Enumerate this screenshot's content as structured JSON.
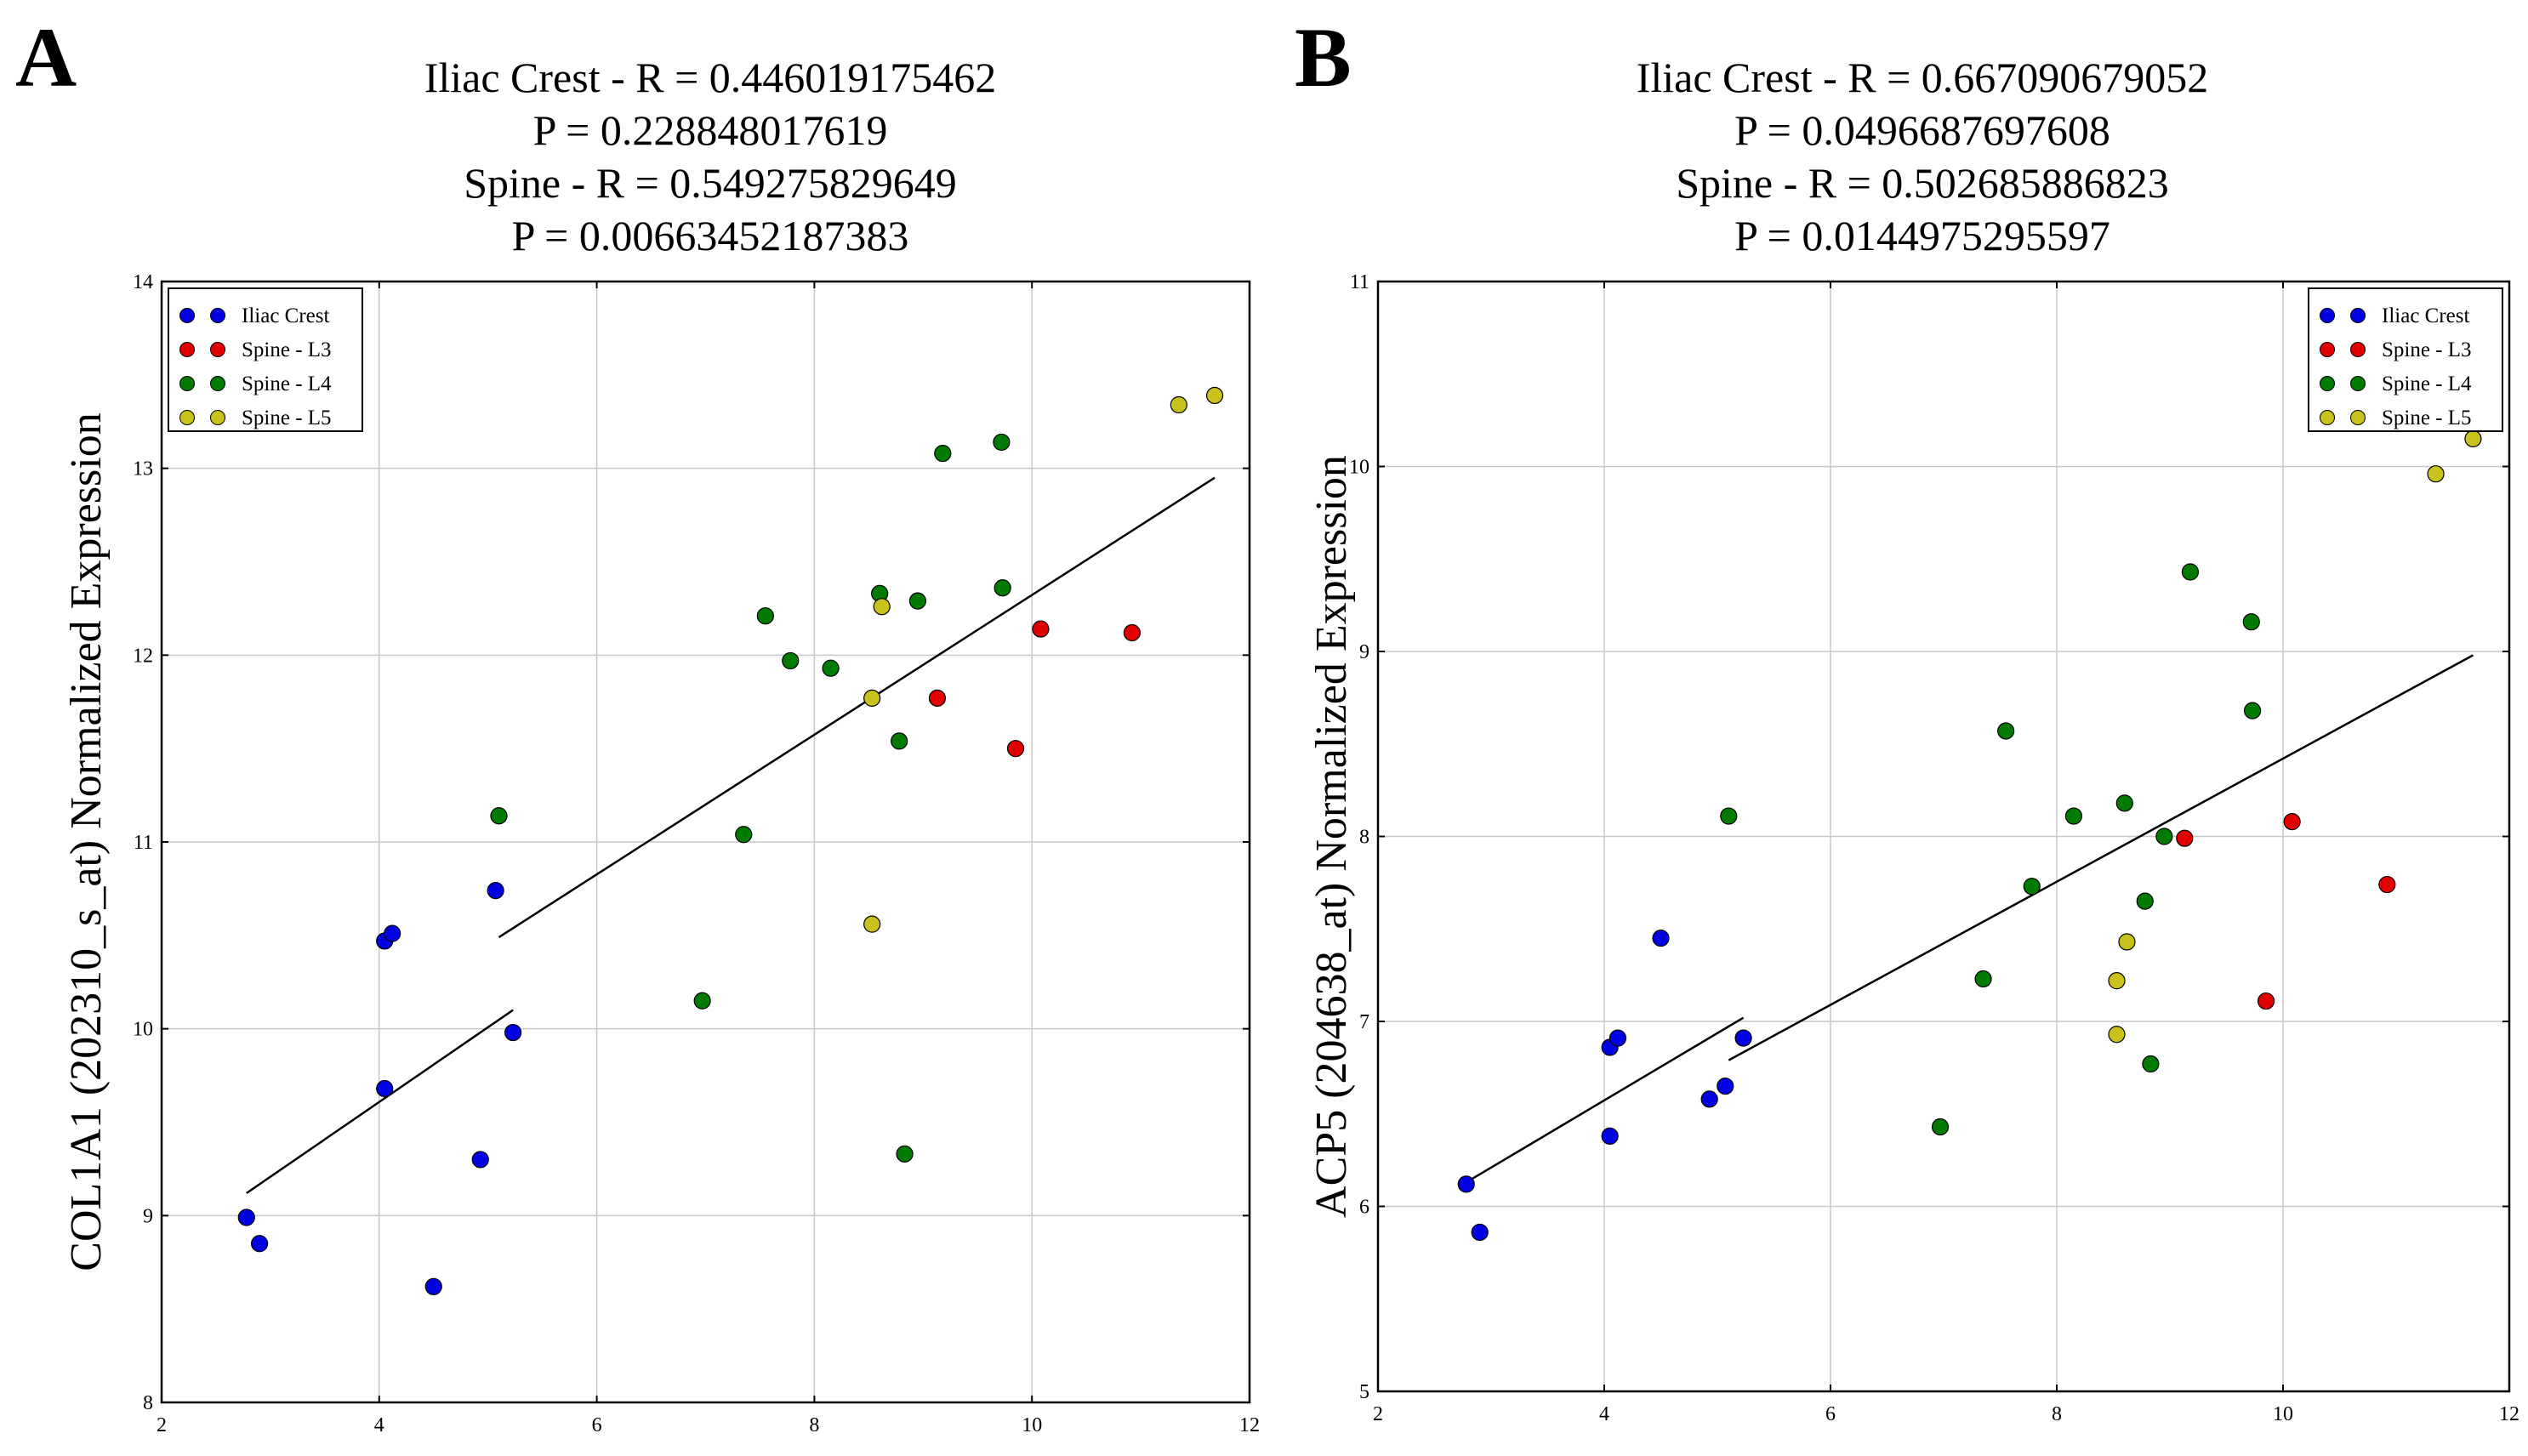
{
  "panels": [
    {
      "letter": "A",
      "title_lines": [
        "Iliac Crest - R = 0.446019175462",
        "P = 0.228848017619",
        "Spine - R = 0.549275829649",
        "P = 0.00663452187383"
      ]
    },
    {
      "letter": "B",
      "title_lines": [
        "Iliac Crest - R = 0.667090679052",
        "P = 0.0496687697608",
        "Spine - R = 0.502685886823",
        "P = 0.0144975295597"
      ]
    }
  ],
  "chart_data": [
    {
      "type": "scatter",
      "title": "Iliac Crest - R = 0.446019175462\nP = 0.228848017619\nSpine - R = 0.549275829649\nP = 0.00663452187383",
      "xlabel": "",
      "ylabel": "COL1A1 (202310_s_at) Normalized Expression",
      "xlim": [
        2,
        12
      ],
      "ylim": [
        8,
        14
      ],
      "xticks": [
        2,
        4,
        6,
        8,
        10,
        12
      ],
      "yticks": [
        8,
        9,
        10,
        11,
        12,
        13,
        14
      ],
      "grid": true,
      "legend_position": "top-left",
      "series": [
        {
          "name": "Iliac Crest",
          "color": "#0000e0",
          "points": [
            [
              2.78,
              8.99
            ],
            [
              2.9,
              8.85
            ],
            [
              4.05,
              9.68
            ],
            [
              4.05,
              10.47
            ],
            [
              4.12,
              10.51
            ],
            [
              4.5,
              8.62
            ],
            [
              4.93,
              9.3
            ],
            [
              5.07,
              10.74
            ],
            [
              5.23,
              9.98
            ]
          ]
        },
        {
          "name": "Spine - L3",
          "color": "#e00000",
          "points": [
            [
              9.13,
              11.77
            ],
            [
              9.85,
              11.5
            ],
            [
              10.08,
              12.14
            ],
            [
              10.92,
              12.12
            ]
          ]
        },
        {
          "name": "Spine - L4",
          "color": "#007a00",
          "points": [
            [
              5.1,
              11.14
            ],
            [
              6.97,
              10.15
            ],
            [
              7.35,
              11.04
            ],
            [
              7.55,
              12.21
            ],
            [
              7.78,
              11.97
            ],
            [
              8.15,
              11.93
            ],
            [
              8.6,
              12.33
            ],
            [
              8.78,
              11.54
            ],
            [
              8.83,
              9.33
            ],
            [
              8.95,
              12.29
            ],
            [
              9.18,
              13.08
            ],
            [
              9.72,
              13.14
            ],
            [
              9.73,
              12.36
            ]
          ]
        },
        {
          "name": "Spine - L5",
          "color": "#c9c21c",
          "points": [
            [
              8.53,
              11.77
            ],
            [
              8.62,
              12.26
            ],
            [
              8.53,
              10.56
            ],
            [
              11.35,
              13.34
            ],
            [
              11.68,
              13.39
            ]
          ]
        }
      ],
      "fit_lines": [
        {
          "name": "Iliac Crest fit",
          "x": [
            2.78,
            5.23
          ],
          "y": [
            9.12,
            10.1
          ]
        },
        {
          "name": "Spine fit",
          "x": [
            5.1,
            11.68
          ],
          "y": [
            10.49,
            12.95
          ]
        }
      ]
    },
    {
      "type": "scatter",
      "title": "Iliac Crest - R = 0.667090679052\nP = 0.0496687697608\nSpine - R = 0.502685886823\nP = 0.0144975295597",
      "xlabel": "",
      "ylabel": "ACP5 (204638_at) Normalized Expression",
      "xlim": [
        2,
        12
      ],
      "ylim": [
        5,
        11
      ],
      "xticks": [
        2,
        4,
        6,
        8,
        10,
        12
      ],
      "yticks": [
        5,
        6,
        7,
        8,
        9,
        10,
        11
      ],
      "grid": true,
      "legend_position": "top-right",
      "series": [
        {
          "name": "Iliac Crest",
          "color": "#0000e0",
          "points": [
            [
              2.78,
              6.12
            ],
            [
              2.9,
              5.86
            ],
            [
              4.05,
              6.38
            ],
            [
              4.05,
              6.86
            ],
            [
              4.12,
              6.91
            ],
            [
              4.5,
              7.45
            ],
            [
              4.93,
              6.58
            ],
            [
              5.07,
              6.65
            ],
            [
              5.23,
              6.91
            ]
          ]
        },
        {
          "name": "Spine - L3",
          "color": "#e00000",
          "points": [
            [
              9.13,
              7.99
            ],
            [
              9.85,
              7.11
            ],
            [
              10.08,
              8.08
            ],
            [
              10.92,
              7.74
            ]
          ]
        },
        {
          "name": "Spine - L4",
          "color": "#007a00",
          "points": [
            [
              5.1,
              8.11
            ],
            [
              6.97,
              6.43
            ],
            [
              7.35,
              7.23
            ],
            [
              7.55,
              8.57
            ],
            [
              7.78,
              7.73
            ],
            [
              8.15,
              8.11
            ],
            [
              8.6,
              8.18
            ],
            [
              8.78,
              7.65
            ],
            [
              8.83,
              6.77
            ],
            [
              8.95,
              8.0
            ],
            [
              9.18,
              9.43
            ],
            [
              9.72,
              9.16
            ],
            [
              9.73,
              8.68
            ]
          ]
        },
        {
          "name": "Spine - L5",
          "color": "#c9c21c",
          "points": [
            [
              8.53,
              7.22
            ],
            [
              8.62,
              7.43
            ],
            [
              8.53,
              6.93
            ],
            [
              11.35,
              9.96
            ],
            [
              11.68,
              10.15
            ]
          ]
        }
      ],
      "fit_lines": [
        {
          "name": "Iliac Crest fit",
          "x": [
            2.78,
            5.23
          ],
          "y": [
            6.13,
            7.02
          ]
        },
        {
          "name": "Spine fit",
          "x": [
            5.1,
            11.68
          ],
          "y": [
            6.79,
            8.98
          ]
        }
      ]
    }
  ]
}
